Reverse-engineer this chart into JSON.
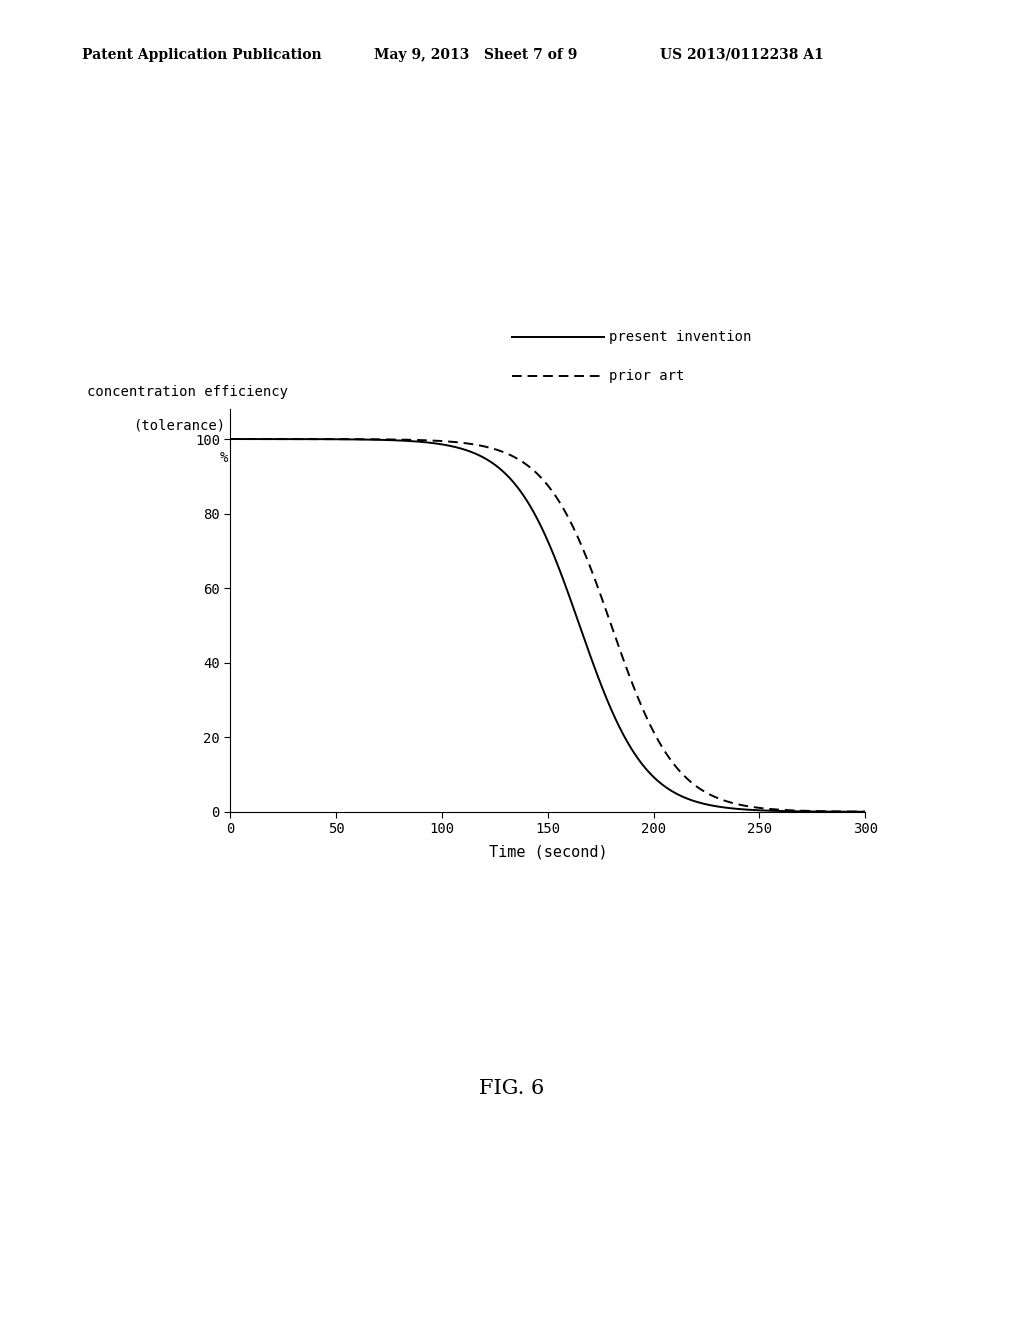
{
  "header_left": "Patent Application Publication",
  "header_mid": "May 9, 2013   Sheet 7 of 9",
  "header_right": "US 2013/0112238 A1",
  "ylabel_line1": "concentration efficiency",
  "ylabel_line2": "(tolerance)",
  "ylabel_unit": "%",
  "xlabel": "Time (second)",
  "legend_present": "present invention",
  "legend_prior": "prior art",
  "figure_label": "FIG. 6",
  "xlim": [
    0,
    300
  ],
  "ylim": [
    0,
    108
  ],
  "xticks": [
    0,
    50,
    100,
    150,
    200,
    250,
    300
  ],
  "yticks": [
    0,
    20,
    40,
    60,
    80,
    100
  ],
  "background_color": "#ffffff",
  "line_color": "#000000",
  "present_x0": 165,
  "present_k": 0.065,
  "prior_x0": 180,
  "prior_k": 0.065,
  "font_size_header": 10,
  "font_size_axis": 10,
  "font_size_label": 11,
  "font_size_legend": 10,
  "font_size_fig_label": 15,
  "font_size_ylabel": 10
}
